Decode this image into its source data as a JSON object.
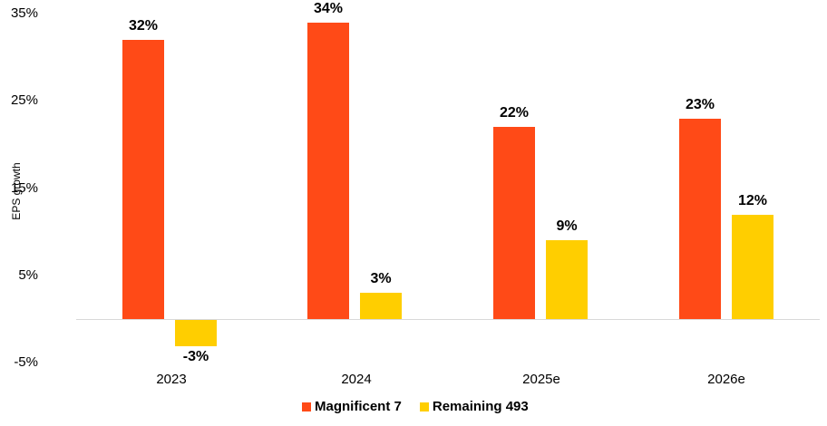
{
  "chart_data": {
    "type": "bar",
    "title": "",
    "xlabel": "",
    "ylabel": "EPS growth",
    "ylim": [
      -5,
      35
    ],
    "yticks": [
      "35%",
      "25%",
      "15%",
      "5%",
      "-5%"
    ],
    "categories": [
      "2023",
      "2024",
      "2025e",
      "2026e"
    ],
    "series": [
      {
        "name": "Magnificent 7",
        "color": "#FF4A17",
        "values": [
          32,
          34,
          22,
          23
        ],
        "labels": [
          "32%",
          "34%",
          "22%",
          "23%"
        ]
      },
      {
        "name": "Remaining 493",
        "color": "#FFCE00",
        "values": [
          -3,
          3,
          9,
          12
        ],
        "labels": [
          "-3%",
          "3%",
          "9%",
          "12%"
        ]
      }
    ],
    "grid": false,
    "legend_position": "bottom"
  }
}
